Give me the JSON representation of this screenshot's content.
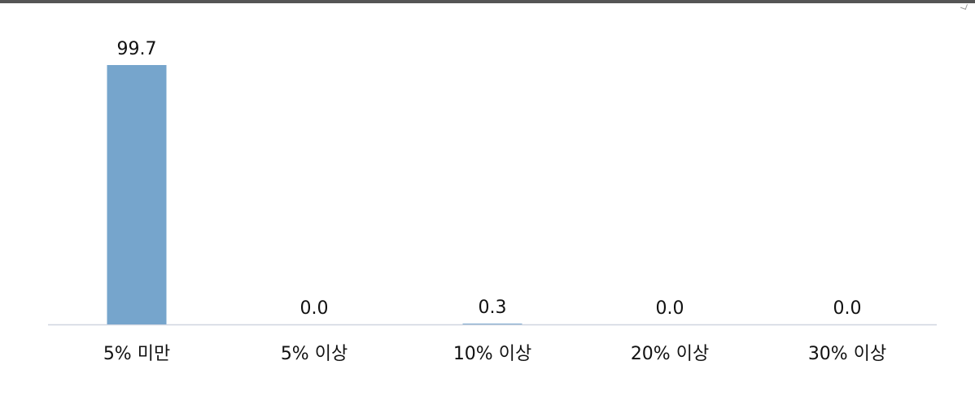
{
  "chart_data": {
    "type": "bar",
    "categories": [
      "5% 미만",
      "5% 이상",
      "10% 이상",
      "20% 이상",
      "30% 이상"
    ],
    "values": [
      99.7,
      0.0,
      0.3,
      0.0,
      0.0
    ],
    "value_labels": [
      "99.7",
      "0.0",
      "0.3",
      "0.0",
      "0.0"
    ],
    "ylim": [
      0,
      100
    ],
    "bar_color": "#76a5cc",
    "axis_color": "#d0d6e0",
    "text_color": "#111111",
    "grid": false,
    "legend": "none"
  }
}
